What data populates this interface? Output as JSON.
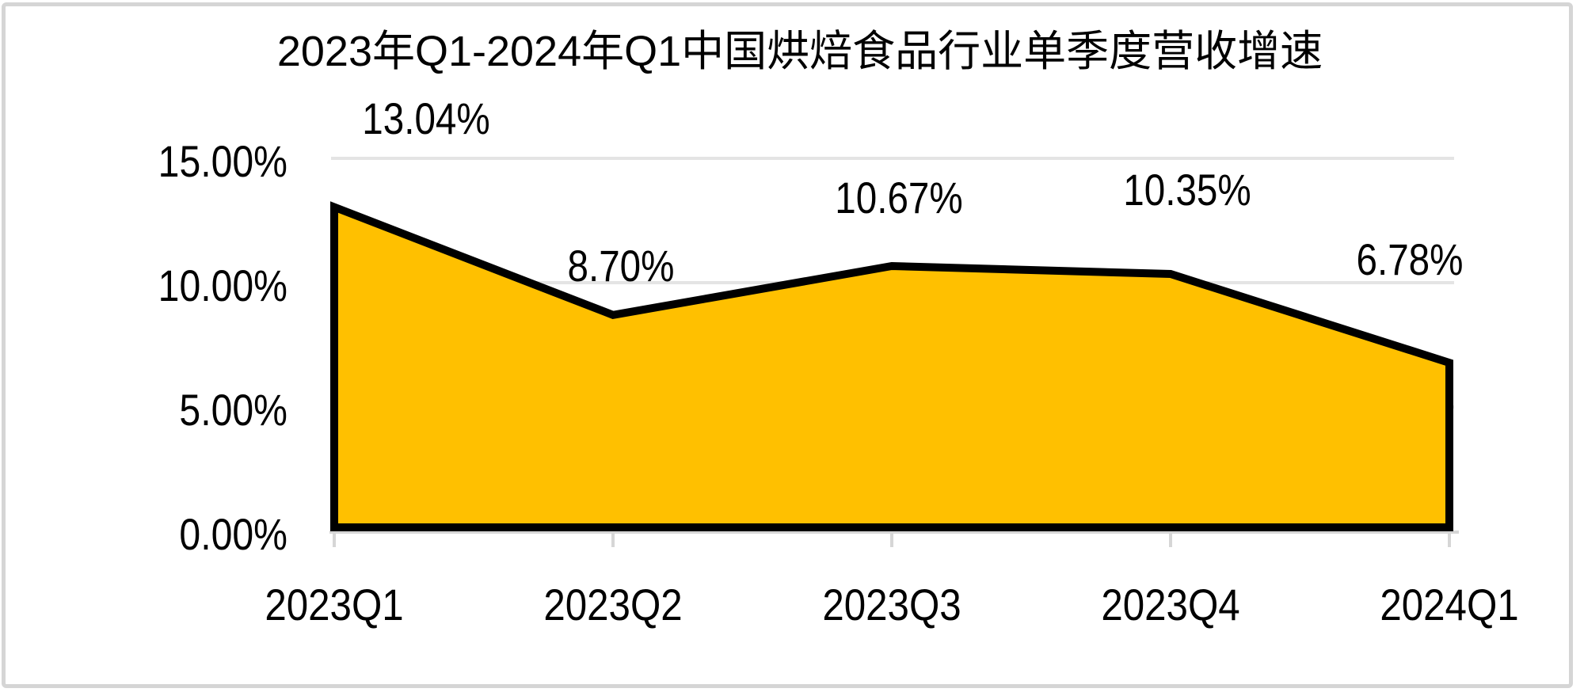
{
  "chart_data": {
    "type": "area",
    "title": "2023年Q1-2024年Q1中国烘焙食品行业单季度营收增速",
    "categories": [
      "2023Q1",
      "2023Q2",
      "2023Q3",
      "2023Q4",
      "2024Q1"
    ],
    "values": [
      13.04,
      8.7,
      10.67,
      10.35,
      6.78
    ],
    "data_labels": [
      "13.04%",
      "8.70%",
      "10.67%",
      "10.35%",
      "6.78%"
    ],
    "y_ticks": [
      "15.00%",
      "10.00%",
      "5.00%",
      "0.00%"
    ],
    "y_tick_values": [
      15,
      10,
      5,
      0
    ],
    "ylim": [
      0,
      15
    ],
    "xlabel": "",
    "ylabel": "",
    "grid": true,
    "legend": false,
    "colors": {
      "area_fill": "#FFC000",
      "line": "#000000",
      "gridline": "#E4E4E4",
      "axis": "#D6D6D6",
      "text": "#000000",
      "card_border": "#D5D5D5"
    }
  }
}
